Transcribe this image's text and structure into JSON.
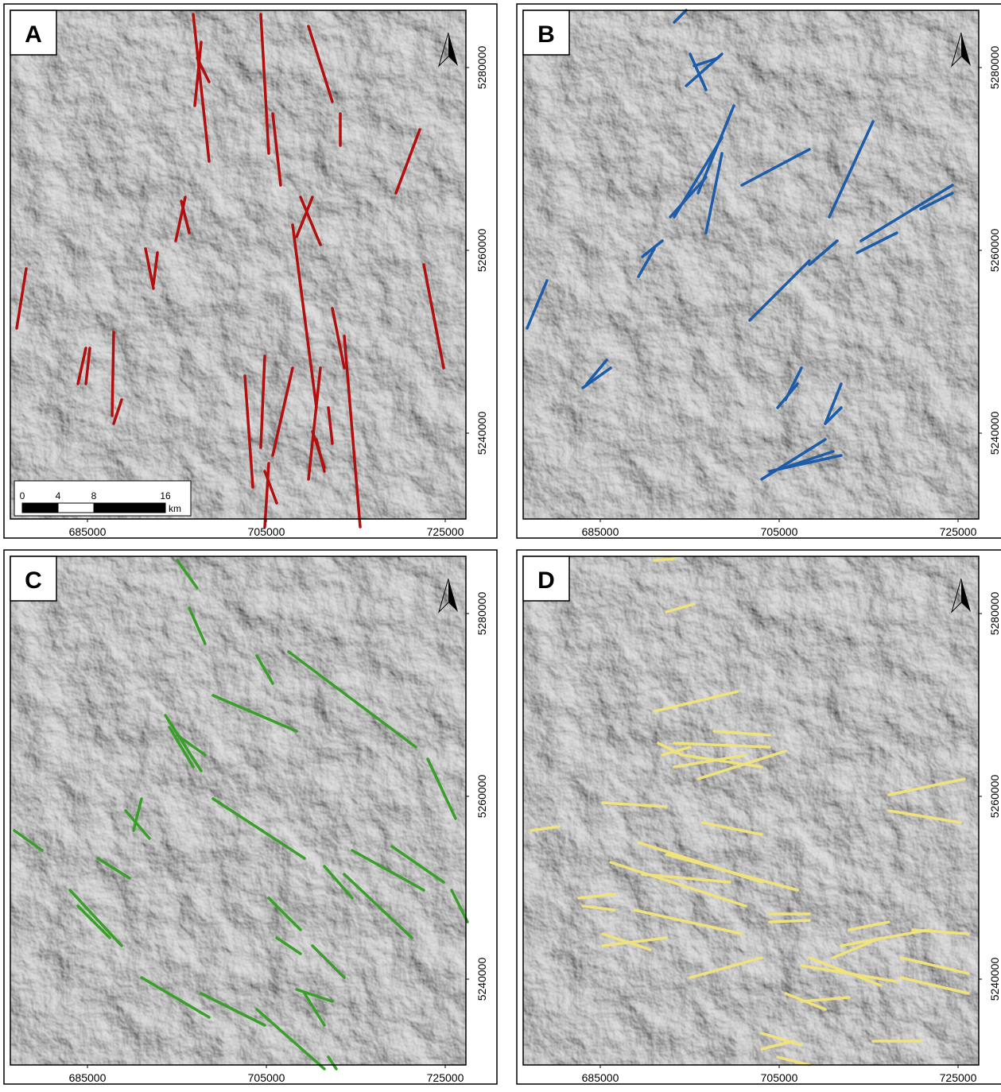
{
  "panels": [
    {
      "label": "A"
    },
    {
      "label": "B"
    },
    {
      "label": "C"
    },
    {
      "label": "D"
    }
  ],
  "x_ticks": [
    685000,
    705000,
    725000
  ],
  "y_ticks": [
    5280000,
    5260000,
    5240000
  ],
  "scale_bar": {
    "ticks": [
      0,
      4,
      8,
      16
    ],
    "unit": "km"
  }
}
